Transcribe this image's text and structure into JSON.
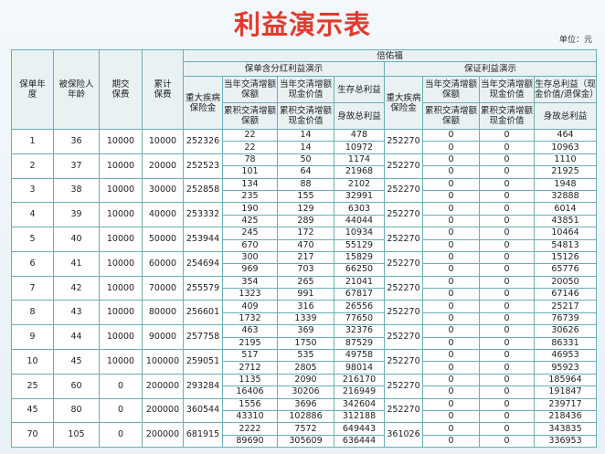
{
  "title": "利益演示表",
  "unit": "单位：元",
  "header": {
    "policy_year": "保单年度",
    "age": "被保险人年龄",
    "premium": "期交保费",
    "cumulative": "累计保费",
    "product": "倍佑福",
    "par": {
      "title": "保单含分红利益演示",
      "ci": "重大疾病保险金",
      "annual_sa": "当年交清增额保额",
      "annual_cv": "当年交清增额现金价值",
      "survival": "生存总利益",
      "cum_sa": "累积交清增额保额",
      "cum_cv": "累积交清增额现金价值",
      "death": "身故总利益"
    },
    "guaranteed": {
      "title": "保证利益演示",
      "ci": "重大疾病保险金",
      "annual_sa": "当年交清增额保额",
      "annual_cv": "当年交清增额现金价值",
      "survival": "生存总利益（现金价值/退保金）",
      "cum_sa": "累积交清增额保额",
      "cum_cv": "累积交清增额现金价值",
      "death": "身故总利益"
    }
  },
  "table": {
    "rows": [
      [
        1,
        36,
        10000,
        10000,
        252326,
        [
          22,
          14,
          478
        ],
        [
          22,
          14,
          10972
        ],
        252270,
        [
          0,
          0,
          464
        ],
        [
          0,
          0,
          10963
        ]
      ],
      [
        2,
        37,
        10000,
        20000,
        252523,
        [
          78,
          50,
          1174
        ],
        [
          101,
          64,
          21968
        ],
        252270,
        [
          0,
          0,
          1110
        ],
        [
          0,
          0,
          21925
        ]
      ],
      [
        3,
        38,
        10000,
        30000,
        252858,
        [
          134,
          88,
          2102
        ],
        [
          235,
          155,
          32991
        ],
        252270,
        [
          0,
          0,
          1948
        ],
        [
          0,
          0,
          32888
        ]
      ],
      [
        4,
        39,
        10000,
        40000,
        253332,
        [
          190,
          129,
          6303
        ],
        [
          425,
          289,
          44044
        ],
        252270,
        [
          0,
          0,
          6014
        ],
        [
          0,
          0,
          43851
        ]
      ],
      [
        5,
        40,
        10000,
        50000,
        253944,
        [
          245,
          172,
          10934
        ],
        [
          670,
          470,
          55129
        ],
        252270,
        [
          0,
          0,
          10464
        ],
        [
          0,
          0,
          54813
        ]
      ],
      [
        6,
        41,
        10000,
        60000,
        254694,
        [
          300,
          217,
          15829
        ],
        [
          969,
          703,
          66250
        ],
        252270,
        [
          0,
          0,
          15126
        ],
        [
          0,
          0,
          65776
        ]
      ],
      [
        7,
        42,
        10000,
        70000,
        255579,
        [
          354,
          265,
          21041
        ],
        [
          1323,
          991,
          67817
        ],
        252270,
        [
          0,
          0,
          20050
        ],
        [
          0,
          0,
          67146
        ]
      ],
      [
        8,
        43,
        10000,
        80000,
        256601,
        [
          409,
          316,
          26556
        ],
        [
          1732,
          1339,
          77650
        ],
        252270,
        [
          0,
          0,
          25217
        ],
        [
          0,
          0,
          76739
        ]
      ],
      [
        9,
        44,
        10000,
        90000,
        257758,
        [
          463,
          369,
          32376
        ],
        [
          2195,
          1750,
          87529
        ],
        252270,
        [
          0,
          0,
          30626
        ],
        [
          0,
          0,
          86331
        ]
      ],
      [
        10,
        45,
        10000,
        100000,
        259051,
        [
          517,
          535,
          49758
        ],
        [
          2712,
          2805,
          98014
        ],
        252270,
        [
          0,
          0,
          46953
        ],
        [
          0,
          0,
          95923
        ]
      ],
      [
        25,
        60,
        0,
        200000,
        293284,
        [
          1135,
          2090,
          216170
        ],
        [
          16406,
          30206,
          216949
        ],
        252270,
        [
          0,
          0,
          185964
        ],
        [
          0,
          0,
          191847
        ]
      ],
      [
        45,
        80,
        0,
        200000,
        360544,
        [
          1556,
          3696,
          342604
        ],
        [
          43310,
          102886,
          312188
        ],
        252270,
        [
          0,
          0,
          239717
        ],
        [
          0,
          0,
          218436
        ]
      ],
      [
        70,
        105,
        0,
        200000,
        681915,
        [
          2222,
          7572,
          649443
        ],
        [
          89690,
          305609,
          636444
        ],
        361026,
        [
          0,
          0,
          343835
        ],
        [
          0,
          0,
          336953
        ]
      ]
    ]
  }
}
